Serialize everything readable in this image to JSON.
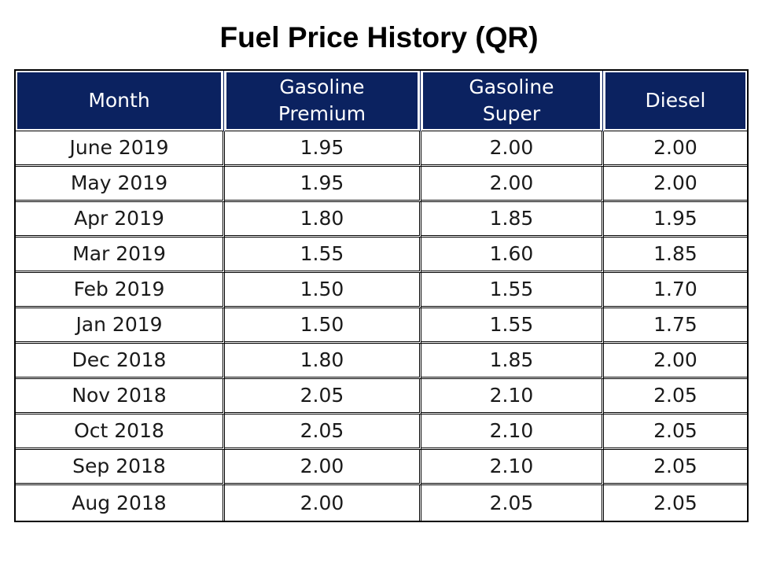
{
  "title": "Fuel Price History (QR)",
  "columns": [
    "Month",
    "Gasoline Premium",
    "Gasoline Super",
    "Diesel"
  ],
  "header_lines": [
    [
      "Month"
    ],
    [
      "Gasoline",
      "Premium"
    ],
    [
      "Gasoline",
      "Super"
    ],
    [
      "Diesel"
    ]
  ],
  "colors": {
    "header_background": "#0b2260",
    "header_text": "#ffffff",
    "border": "#000000"
  },
  "chart_data": {
    "type": "table",
    "title": "Fuel Price History (QR)",
    "columns": [
      "Month",
      "Gasoline Premium",
      "Gasoline Super",
      "Diesel"
    ],
    "rows": [
      [
        "June 2019",
        "1.95",
        "2.00",
        "2.00"
      ],
      [
        "May 2019",
        "1.95",
        "2.00",
        "2.00"
      ],
      [
        "Apr 2019",
        "1.80",
        "1.85",
        "1.95"
      ],
      [
        "Mar 2019",
        "1.55",
        "1.60",
        "1.85"
      ],
      [
        "Feb 2019",
        "1.50",
        "1.55",
        "1.70"
      ],
      [
        "Jan 2019",
        "1.50",
        "1.55",
        "1.75"
      ],
      [
        "Dec 2018",
        "1.80",
        "1.85",
        "2.00"
      ],
      [
        "Nov 2018",
        "2.05",
        "2.10",
        "2.05"
      ],
      [
        "Oct 2018",
        "2.05",
        "2.10",
        "2.05"
      ],
      [
        "Sep 2018",
        "2.00",
        "2.10",
        "2.05"
      ],
      [
        "Aug 2018",
        "2.00",
        "2.05",
        "2.05"
      ]
    ]
  }
}
